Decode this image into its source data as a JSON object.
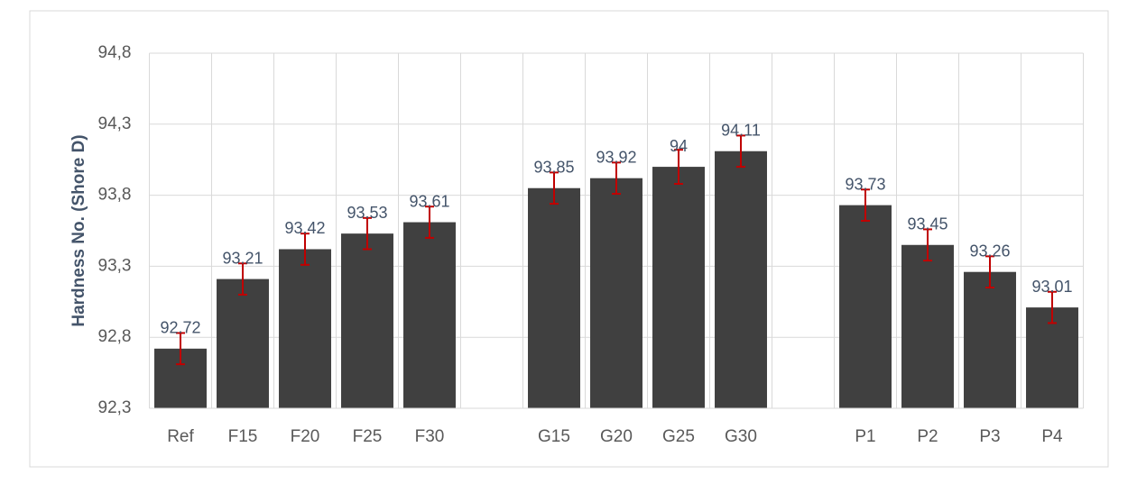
{
  "chart_data": {
    "type": "bar",
    "y_label": "Hardness  No. (Shore D)",
    "categories": [
      "Ref",
      "F15",
      "F20",
      "F25",
      "F30",
      null,
      "G15",
      "G20",
      "G25",
      "G30",
      null,
      "P1",
      "P2",
      "P3",
      "P4"
    ],
    "values": [
      92.72,
      93.21,
      93.42,
      93.53,
      93.61,
      null,
      93.85,
      93.92,
      94,
      94.11,
      null,
      93.73,
      93.45,
      93.26,
      93.01
    ],
    "errors": [
      0.11,
      0.11,
      0.11,
      0.11,
      0.11,
      null,
      0.11,
      0.11,
      0.12,
      0.11,
      null,
      0.11,
      0.11,
      0.11,
      0.11
    ],
    "color": "#404040",
    "error_color": "#c00000",
    "ylim": [
      92.3,
      94.8
    ],
    "yticks": [
      {
        "value": 92.3,
        "label": "92,3"
      },
      {
        "value": 92.8,
        "label": "92,8"
      },
      {
        "value": 93.3,
        "label": "93,3"
      },
      {
        "value": 93.8,
        "label": "93,8"
      },
      {
        "value": 94.3,
        "label": "94,3"
      },
      {
        "value": 94.8,
        "label": "94,8"
      }
    ],
    "grid": true
  }
}
